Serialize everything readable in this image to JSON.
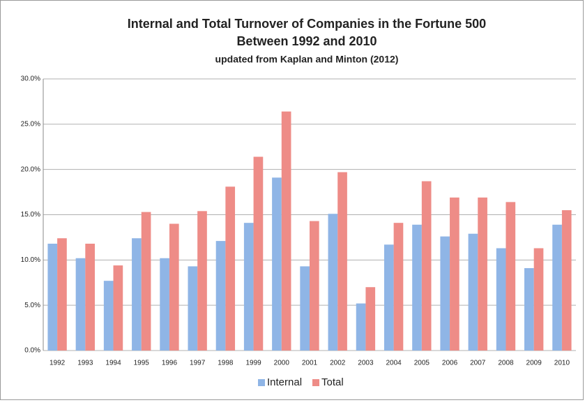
{
  "chart_data": {
    "type": "bar",
    "title": "Internal and Total Turnover of Companies in the Fortune 500",
    "subtitle": "Between 1992 and 2010",
    "note": "updated from Kaplan and Minton (2012)",
    "categories": [
      "1992",
      "1993",
      "1994",
      "1995",
      "1996",
      "1997",
      "1998",
      "1999",
      "2000",
      "2001",
      "2002",
      "2003",
      "2004",
      "2005",
      "2006",
      "2007",
      "2008",
      "2009",
      "2010"
    ],
    "series": [
      {
        "name": "Internal",
        "color": "#8fb5e6",
        "values": [
          11.8,
          10.2,
          7.7,
          12.4,
          10.2,
          9.3,
          12.1,
          14.1,
          19.1,
          9.3,
          15.1,
          5.2,
          11.7,
          13.9,
          12.6,
          12.9,
          11.3,
          9.1,
          13.9
        ]
      },
      {
        "name": "Total",
        "color": "#ee8c87",
        "values": [
          12.4,
          11.8,
          9.4,
          15.3,
          14.0,
          15.4,
          18.1,
          21.4,
          26.4,
          14.3,
          19.7,
          7.0,
          14.1,
          18.7,
          16.9,
          16.9,
          16.4,
          11.3,
          15.5
        ]
      }
    ],
    "ylim": [
      0,
      30
    ],
    "yticks": [
      {
        "value": 0,
        "label": "0.0%"
      },
      {
        "value": 5,
        "label": "5.0%"
      },
      {
        "value": 10,
        "label": "10.0%"
      },
      {
        "value": 15,
        "label": "15.0%"
      },
      {
        "value": 20,
        "label": "20.0%"
      },
      {
        "value": 25,
        "label": "25.0%"
      },
      {
        "value": 30,
        "label": "30.0%"
      }
    ],
    "grid": true,
    "legend": "bottom"
  }
}
